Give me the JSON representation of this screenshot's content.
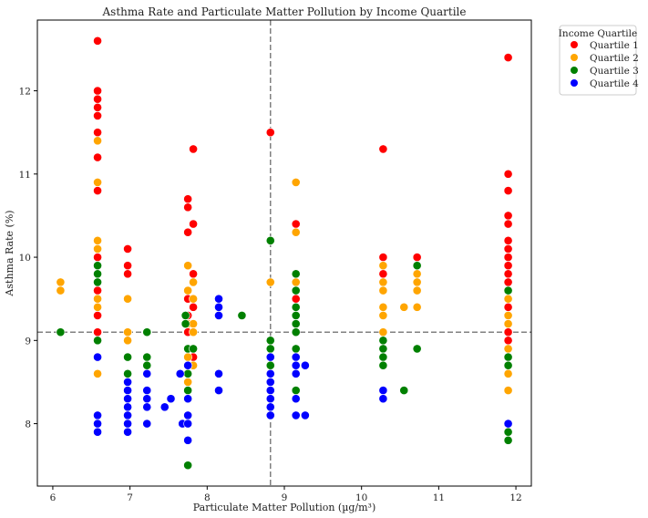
{
  "chart_data": {
    "type": "scatter",
    "title": "Asthma Rate and Particulate Matter Pollution by Income Quartile",
    "xlabel": "Particulate Matter Pollution (µg/m³)",
    "ylabel": "Asthma Rate (%)",
    "xlim": [
      5.8,
      12.2
    ],
    "ylim": [
      7.25,
      12.85
    ],
    "xticks": [
      6,
      7,
      8,
      9,
      10,
      11,
      12
    ],
    "yticks": [
      8,
      9,
      10,
      11,
      12
    ],
    "grid": false,
    "reference_lines": {
      "x": 8.82,
      "y": 9.1,
      "style": "dashed",
      "color": "#808080"
    },
    "legend": {
      "title": "Income Quartile",
      "placement": "outside-top-right"
    },
    "series": [
      {
        "name": "Quartile 1",
        "color": "#ff0000",
        "points": [
          [
            6.58,
            12.6
          ],
          [
            6.58,
            12.0
          ],
          [
            6.58,
            11.9
          ],
          [
            6.58,
            11.8
          ],
          [
            6.58,
            11.7
          ],
          [
            6.58,
            11.5
          ],
          [
            6.58,
            11.2
          ],
          [
            6.58,
            10.8
          ],
          [
            6.58,
            10.0
          ],
          [
            6.58,
            9.6
          ],
          [
            6.58,
            9.3
          ],
          [
            6.58,
            9.1
          ],
          [
            6.97,
            10.1
          ],
          [
            6.97,
            9.9
          ],
          [
            6.97,
            9.8
          ],
          [
            7.75,
            10.7
          ],
          [
            7.75,
            10.6
          ],
          [
            7.75,
            10.3
          ],
          [
            7.75,
            9.5
          ],
          [
            7.75,
            9.3
          ],
          [
            7.75,
            9.1
          ],
          [
            7.82,
            11.3
          ],
          [
            7.82,
            10.4
          ],
          [
            7.82,
            9.8
          ],
          [
            7.82,
            9.4
          ],
          [
            7.82,
            8.8
          ],
          [
            8.82,
            11.5
          ],
          [
            9.15,
            10.4
          ],
          [
            9.15,
            9.5
          ],
          [
            10.28,
            11.3
          ],
          [
            10.28,
            10.0
          ],
          [
            10.28,
            9.8
          ],
          [
            10.72,
            10.0
          ],
          [
            11.9,
            12.4
          ],
          [
            11.9,
            11.0
          ],
          [
            11.9,
            10.8
          ],
          [
            11.9,
            10.5
          ],
          [
            11.9,
            10.4
          ],
          [
            11.9,
            10.2
          ],
          [
            11.9,
            10.1
          ],
          [
            11.9,
            10.0
          ],
          [
            11.9,
            9.9
          ],
          [
            11.9,
            9.8
          ],
          [
            11.9,
            9.7
          ],
          [
            11.9,
            9.4
          ],
          [
            11.9,
            9.1
          ],
          [
            11.9,
            9.0
          ]
        ]
      },
      {
        "name": "Quartile 2",
        "color": "#ffa500",
        "points": [
          [
            6.1,
            9.7
          ],
          [
            6.1,
            9.6
          ],
          [
            6.58,
            11.4
          ],
          [
            6.58,
            10.9
          ],
          [
            6.58,
            10.2
          ],
          [
            6.58,
            10.1
          ],
          [
            6.58,
            9.5
          ],
          [
            6.58,
            9.4
          ],
          [
            6.58,
            9.0
          ],
          [
            6.58,
            8.6
          ],
          [
            6.97,
            9.5
          ],
          [
            6.97,
            9.1
          ],
          [
            6.97,
            9.0
          ],
          [
            7.75,
            9.9
          ],
          [
            7.75,
            9.6
          ],
          [
            7.75,
            9.2
          ],
          [
            7.75,
            8.8
          ],
          [
            7.75,
            8.5
          ],
          [
            7.82,
            9.7
          ],
          [
            7.82,
            9.5
          ],
          [
            7.82,
            9.2
          ],
          [
            7.82,
            9.1
          ],
          [
            7.82,
            8.7
          ],
          [
            8.82,
            9.7
          ],
          [
            9.15,
            10.9
          ],
          [
            9.15,
            10.3
          ],
          [
            9.15,
            9.7
          ],
          [
            10.28,
            9.9
          ],
          [
            10.28,
            9.7
          ],
          [
            10.28,
            9.6
          ],
          [
            10.28,
            9.4
          ],
          [
            10.28,
            9.3
          ],
          [
            10.28,
            9.1
          ],
          [
            10.55,
            9.4
          ],
          [
            10.72,
            9.8
          ],
          [
            10.72,
            9.7
          ],
          [
            10.72,
            9.6
          ],
          [
            10.72,
            9.4
          ],
          [
            11.9,
            9.5
          ],
          [
            11.9,
            9.3
          ],
          [
            11.9,
            9.2
          ],
          [
            11.9,
            8.9
          ],
          [
            11.9,
            8.6
          ],
          [
            11.9,
            8.4
          ]
        ]
      },
      {
        "name": "Quartile 3",
        "color": "#008000",
        "points": [
          [
            6.1,
            9.1
          ],
          [
            6.58,
            9.9
          ],
          [
            6.58,
            9.8
          ],
          [
            6.58,
            9.7
          ],
          [
            6.58,
            9.0
          ],
          [
            6.97,
            8.8
          ],
          [
            6.97,
            8.6
          ],
          [
            7.22,
            9.1
          ],
          [
            7.22,
            8.8
          ],
          [
            7.22,
            8.7
          ],
          [
            7.72,
            9.3
          ],
          [
            7.72,
            9.2
          ],
          [
            7.75,
            8.9
          ],
          [
            7.75,
            8.7
          ],
          [
            7.75,
            8.6
          ],
          [
            7.75,
            8.4
          ],
          [
            7.75,
            7.5
          ],
          [
            7.82,
            8.9
          ],
          [
            8.45,
            9.3
          ],
          [
            8.82,
            10.2
          ],
          [
            8.82,
            9.0
          ],
          [
            8.82,
            8.9
          ],
          [
            8.82,
            8.8
          ],
          [
            8.82,
            8.7
          ],
          [
            8.82,
            8.5
          ],
          [
            8.82,
            8.3
          ],
          [
            9.15,
            9.8
          ],
          [
            9.15,
            9.6
          ],
          [
            9.15,
            9.4
          ],
          [
            9.15,
            9.3
          ],
          [
            9.15,
            9.2
          ],
          [
            9.15,
            9.1
          ],
          [
            9.15,
            8.9
          ],
          [
            9.15,
            8.4
          ],
          [
            10.28,
            9.0
          ],
          [
            10.28,
            8.9
          ],
          [
            10.28,
            8.8
          ],
          [
            10.28,
            8.7
          ],
          [
            10.55,
            8.4
          ],
          [
            10.72,
            9.9
          ],
          [
            10.72,
            8.9
          ],
          [
            11.9,
            9.6
          ],
          [
            11.9,
            8.8
          ],
          [
            11.9,
            8.7
          ],
          [
            11.9,
            7.9
          ],
          [
            11.9,
            7.8
          ]
        ]
      },
      {
        "name": "Quartile 4",
        "color": "#0000ff",
        "points": [
          [
            6.58,
            8.8
          ],
          [
            6.58,
            8.1
          ],
          [
            6.58,
            8.0
          ],
          [
            6.58,
            7.9
          ],
          [
            6.97,
            8.5
          ],
          [
            6.97,
            8.4
          ],
          [
            6.97,
            8.3
          ],
          [
            6.97,
            8.2
          ],
          [
            6.97,
            8.1
          ],
          [
            6.97,
            8.0
          ],
          [
            6.97,
            7.9
          ],
          [
            7.22,
            8.6
          ],
          [
            7.22,
            8.4
          ],
          [
            7.22,
            8.3
          ],
          [
            7.22,
            8.2
          ],
          [
            7.22,
            8.0
          ],
          [
            7.45,
            8.2
          ],
          [
            7.53,
            8.3
          ],
          [
            7.65,
            8.6
          ],
          [
            7.68,
            8.0
          ],
          [
            7.75,
            8.7
          ],
          [
            7.75,
            8.3
          ],
          [
            7.75,
            8.1
          ],
          [
            7.75,
            8.0
          ],
          [
            7.75,
            7.8
          ],
          [
            8.15,
            9.5
          ],
          [
            8.15,
            9.4
          ],
          [
            8.15,
            9.3
          ],
          [
            8.15,
            8.6
          ],
          [
            8.15,
            8.4
          ],
          [
            8.82,
            8.8
          ],
          [
            8.82,
            8.6
          ],
          [
            8.82,
            8.5
          ],
          [
            8.82,
            8.4
          ],
          [
            8.82,
            8.3
          ],
          [
            8.82,
            8.2
          ],
          [
            8.82,
            8.1
          ],
          [
            9.15,
            8.8
          ],
          [
            9.15,
            8.7
          ],
          [
            9.15,
            8.6
          ],
          [
            9.15,
            8.3
          ],
          [
            9.15,
            8.1
          ],
          [
            9.27,
            8.7
          ],
          [
            9.27,
            8.1
          ],
          [
            10.28,
            8.4
          ],
          [
            10.28,
            8.3
          ],
          [
            11.9,
            8.0
          ]
        ]
      }
    ]
  }
}
